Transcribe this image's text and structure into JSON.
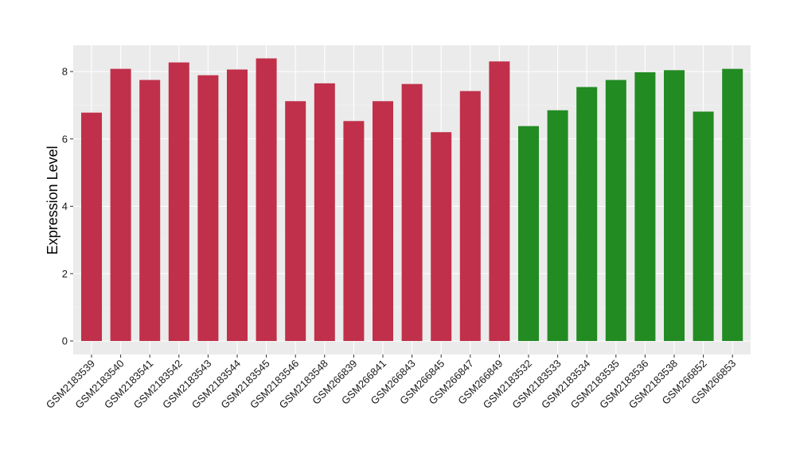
{
  "chart_data": {
    "type": "bar",
    "ylabel": "Expression Level",
    "ylim": [
      0,
      8.8
    ],
    "yticks": [
      0,
      2,
      4,
      6,
      8
    ],
    "grid": true,
    "legend": "none",
    "colors": {
      "group1": "#c0304a",
      "group2": "#228b22"
    },
    "categories": [
      "GSM2183539",
      "GSM2183540",
      "GSM2183541",
      "GSM2183542",
      "GSM2183543",
      "GSM2183544",
      "GSM2183545",
      "GSM2183546",
      "GSM2183548",
      "GSM266839",
      "GSM266841",
      "GSM266843",
      "GSM266845",
      "GSM266847",
      "GSM266849",
      "GSM2183532",
      "GSM2183533",
      "GSM2183534",
      "GSM2183535",
      "GSM2183536",
      "GSM2183538",
      "GSM266852",
      "GSM266853"
    ],
    "values": [
      6.78,
      8.08,
      7.75,
      8.27,
      7.89,
      8.06,
      8.39,
      7.12,
      7.65,
      6.53,
      7.12,
      7.63,
      6.2,
      7.42,
      8.3,
      6.38,
      6.85,
      7.54,
      7.75,
      7.98,
      8.04,
      6.81,
      8.08
    ],
    "groups": [
      1,
      1,
      1,
      1,
      1,
      1,
      1,
      1,
      1,
      1,
      1,
      1,
      1,
      1,
      1,
      2,
      2,
      2,
      2,
      2,
      2,
      2,
      2
    ]
  }
}
